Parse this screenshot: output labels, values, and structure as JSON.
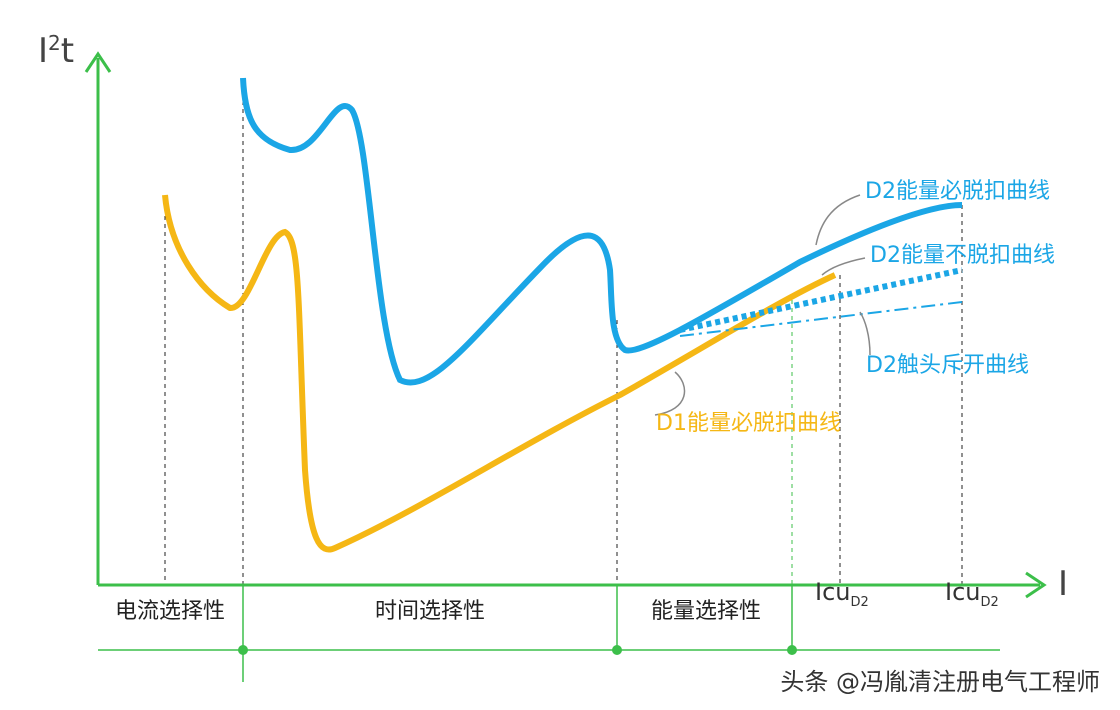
{
  "axes": {
    "y_label": {
      "base": "I",
      "sup": "2",
      "rest": "t"
    },
    "x_label": "I"
  },
  "zones": [
    "电流选择性",
    "时间选择性",
    "能量选择性"
  ],
  "markers": [
    {
      "base": "Icu",
      "sub": "D2"
    },
    {
      "base": "Icu",
      "sub": "D2"
    }
  ],
  "curve_labels": [
    "D2能量必脱扣曲线",
    "D2能量不脱扣曲线",
    "D2触头斥开曲线",
    "D1能量必脱扣曲线"
  ],
  "watermark": "头条 @冯胤清注册电气工程师"
}
